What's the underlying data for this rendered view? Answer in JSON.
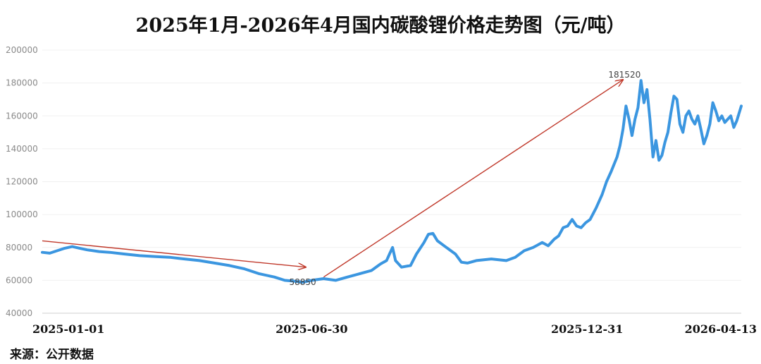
{
  "chart_data": {
    "type": "line",
    "title": "2025年1月-2026年4月国内碳酸锂价格走势图（元/吨）",
    "source": "来源：公开数据",
    "ylim": [
      40000,
      200000
    ],
    "yticks": [
      "40000",
      "60000",
      "80000",
      "100000",
      "120000",
      "140000",
      "160000",
      "180000",
      "200000"
    ],
    "xticks": [
      {
        "label": "2025-01-01",
        "index": 0
      },
      {
        "label": "2025-06-30",
        "index": 180
      },
      {
        "label": "2025-12-31",
        "index": 364
      },
      {
        "label": "2026-04-13",
        "index": 467
      }
    ],
    "annotations": [
      {
        "text": "58850",
        "index": 174,
        "value": 58850
      },
      {
        "text": "181520",
        "index": 389,
        "value": 181520
      }
    ],
    "trend_arrows": [
      {
        "from": [
          0,
          84000
        ],
        "to": [
          176,
          68000
        ]
      },
      {
        "from": [
          188,
          62000
        ],
        "to": [
          388,
          182000
        ]
      }
    ],
    "series": [
      {
        "color": "#3b96e0",
        "points": [
          [
            0,
            77000
          ],
          [
            5,
            76500
          ],
          [
            10,
            78000
          ],
          [
            15,
            79500
          ],
          [
            20,
            80500
          ],
          [
            25,
            79500
          ],
          [
            30,
            78500
          ],
          [
            38,
            77500
          ],
          [
            45,
            77000
          ],
          [
            55,
            76000
          ],
          [
            65,
            75000
          ],
          [
            75,
            74500
          ],
          [
            85,
            74000
          ],
          [
            95,
            73000
          ],
          [
            105,
            72000
          ],
          [
            115,
            70500
          ],
          [
            125,
            69000
          ],
          [
            135,
            67000
          ],
          [
            145,
            64000
          ],
          [
            155,
            62000
          ],
          [
            162,
            60000
          ],
          [
            168,
            59500
          ],
          [
            174,
            58850
          ],
          [
            180,
            60000
          ],
          [
            188,
            61000
          ],
          [
            196,
            60000
          ],
          [
            204,
            62000
          ],
          [
            212,
            64000
          ],
          [
            220,
            66000
          ],
          [
            226,
            70000
          ],
          [
            230,
            72000
          ],
          [
            232,
            76000
          ],
          [
            234,
            80000
          ],
          [
            236,
            72000
          ],
          [
            240,
            68000
          ],
          [
            246,
            69000
          ],
          [
            250,
            76000
          ],
          [
            255,
            83000
          ],
          [
            258,
            88000
          ],
          [
            261,
            88500
          ],
          [
            264,
            84000
          ],
          [
            270,
            80000
          ],
          [
            276,
            76000
          ],
          [
            280,
            71000
          ],
          [
            284,
            70500
          ],
          [
            290,
            72000
          ],
          [
            300,
            73000
          ],
          [
            310,
            72000
          ],
          [
            316,
            74000
          ],
          [
            322,
            78000
          ],
          [
            328,
            80000
          ],
          [
            334,
            83000
          ],
          [
            338,
            81000
          ],
          [
            342,
            85000
          ],
          [
            345,
            87000
          ],
          [
            348,
            92000
          ],
          [
            351,
            93000
          ],
          [
            354,
            97000
          ],
          [
            357,
            93000
          ],
          [
            360,
            92000
          ],
          [
            363,
            95000
          ],
          [
            366,
            97000
          ],
          [
            370,
            104000
          ],
          [
            374,
            112000
          ],
          [
            377,
            120000
          ],
          [
            380,
            126000
          ],
          [
            384,
            135000
          ],
          [
            386,
            142000
          ],
          [
            388,
            152000
          ],
          [
            390,
            166000
          ],
          [
            392,
            158000
          ],
          [
            394,
            148000
          ],
          [
            396,
            158000
          ],
          [
            398,
            165000
          ],
          [
            400,
            181520
          ],
          [
            402,
            168000
          ],
          [
            404,
            176000
          ],
          [
            406,
            158000
          ],
          [
            408,
            135000
          ],
          [
            410,
            145000
          ],
          [
            412,
            133000
          ],
          [
            414,
            136000
          ],
          [
            416,
            144000
          ],
          [
            418,
            150000
          ],
          [
            420,
            162000
          ],
          [
            422,
            172000
          ],
          [
            424,
            170000
          ],
          [
            426,
            155000
          ],
          [
            428,
            150000
          ],
          [
            430,
            160000
          ],
          [
            432,
            163000
          ],
          [
            434,
            158000
          ],
          [
            436,
            155000
          ],
          [
            438,
            160000
          ],
          [
            440,
            152000
          ],
          [
            442,
            143000
          ],
          [
            444,
            148000
          ],
          [
            446,
            155000
          ],
          [
            448,
            168000
          ],
          [
            450,
            163000
          ],
          [
            452,
            157000
          ],
          [
            454,
            160000
          ],
          [
            456,
            156000
          ],
          [
            458,
            158000
          ],
          [
            460,
            160000
          ],
          [
            462,
            153000
          ],
          [
            464,
            157000
          ],
          [
            467,
            166000
          ]
        ]
      }
    ]
  }
}
